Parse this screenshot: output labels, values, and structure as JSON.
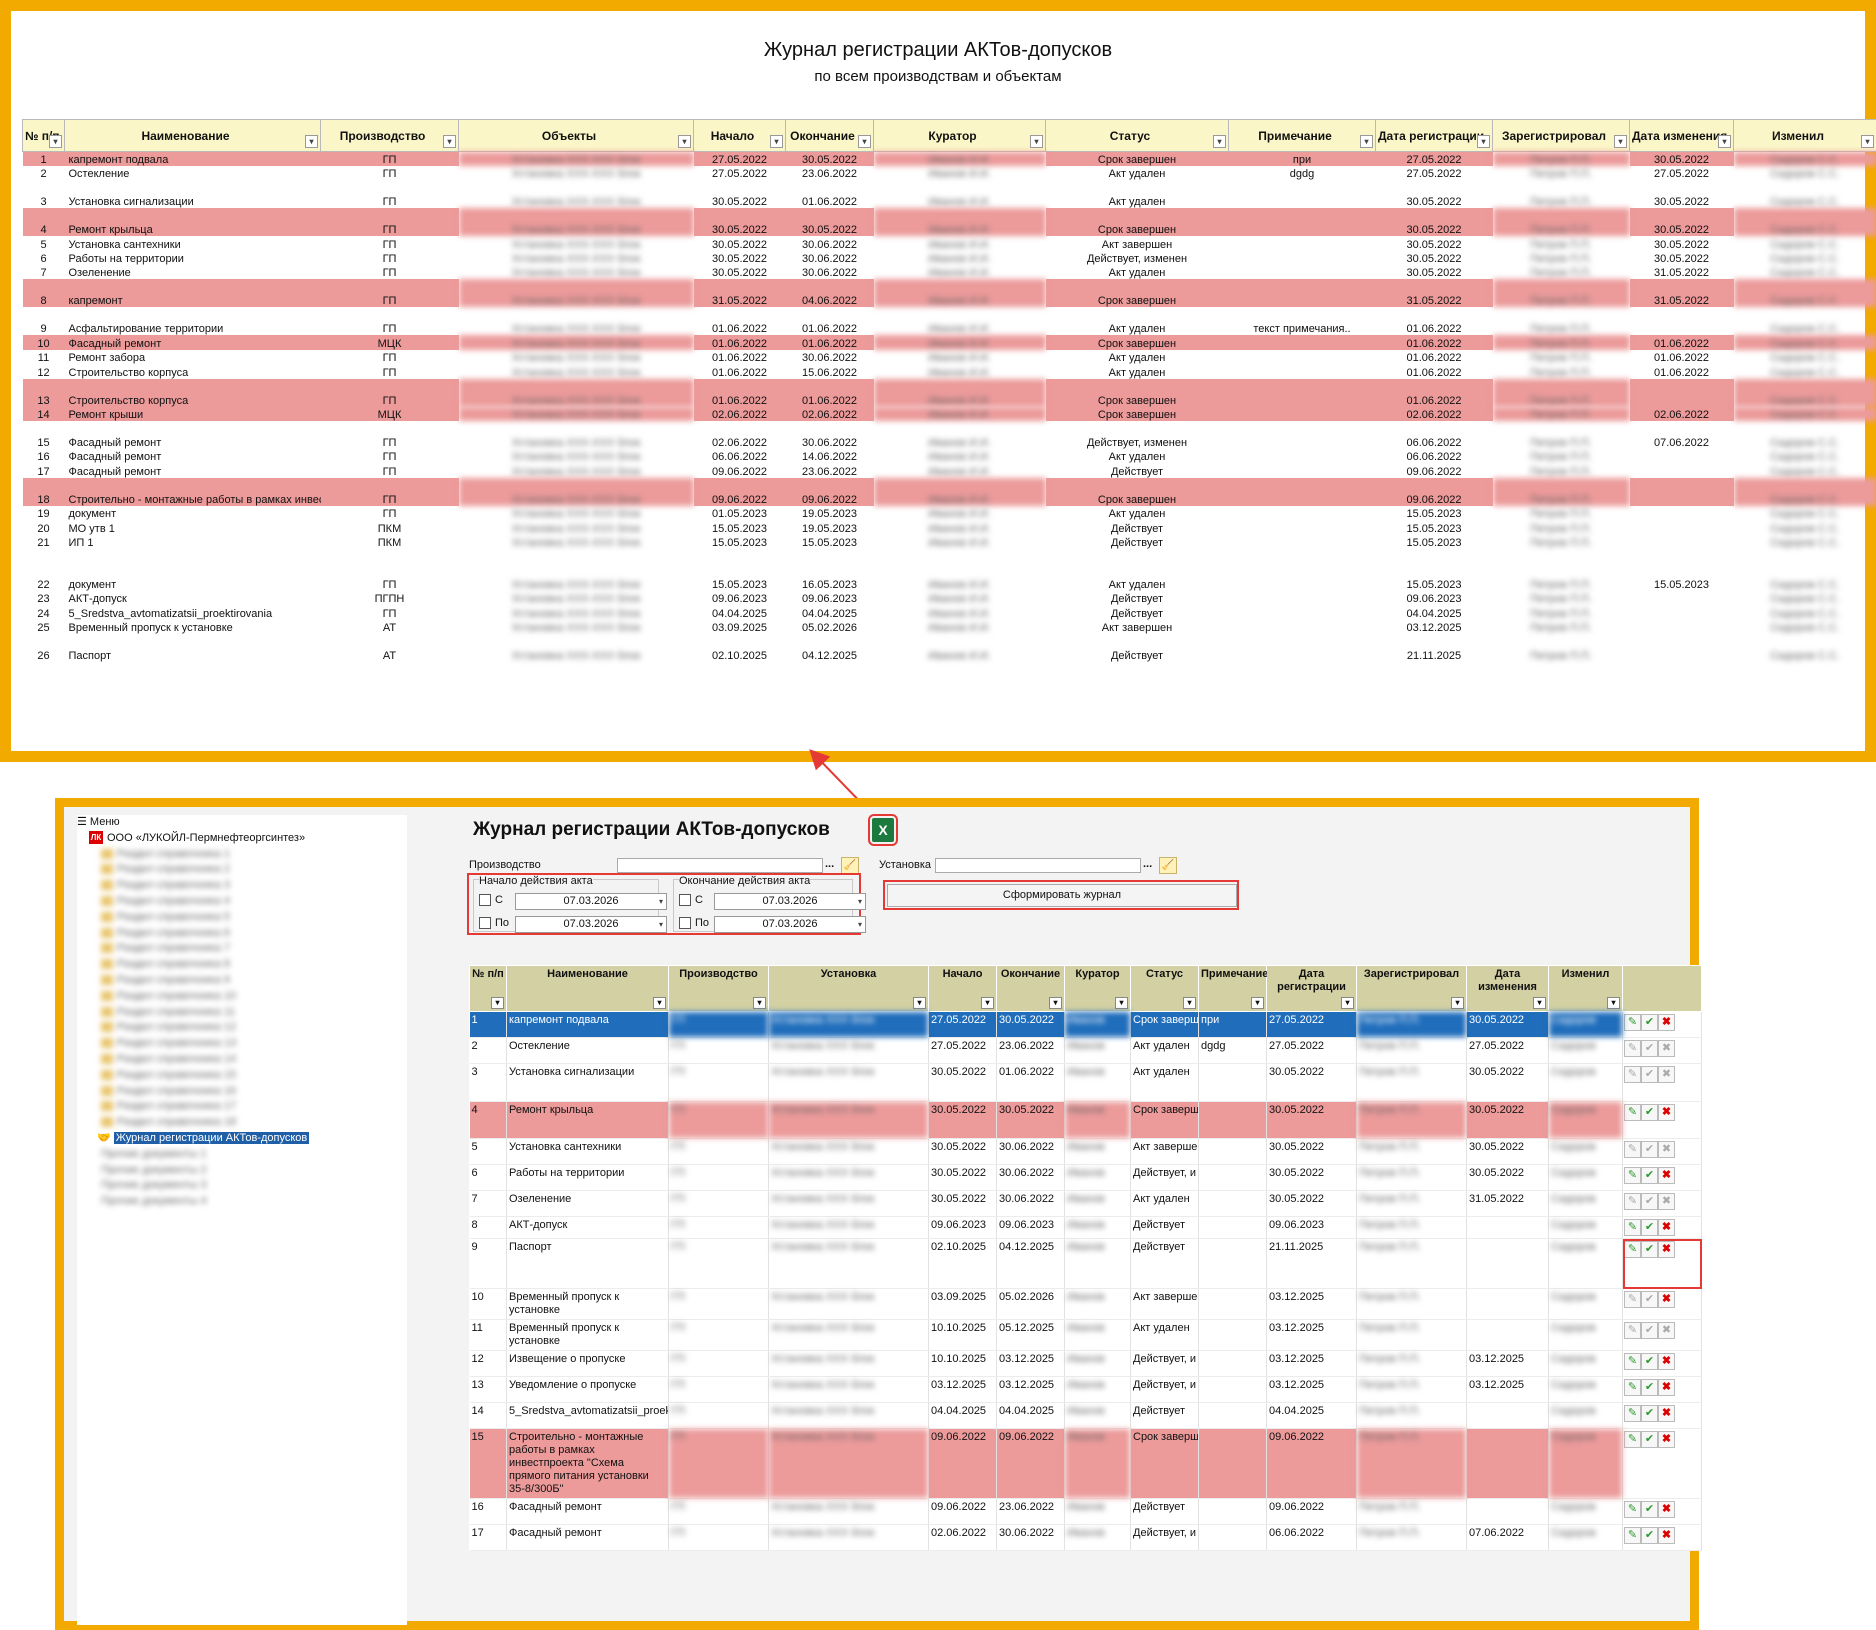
{
  "excel": {
    "title": "Журнал регистрации АКТов-допусков",
    "subtitle": "по всем производствам и объектам",
    "columns": [
      "№ п/п",
      "Наименование",
      "Производство",
      "Объекты",
      "Начало",
      "Окончание",
      "Куратор",
      "Статус",
      "Примечание",
      "Дата регистрации",
      "Зарегистрировал",
      "Дата изменения",
      "Изменил"
    ],
    "rows": [
      {
        "n": "1",
        "name": "капремонт подвала",
        "prod": "ГП",
        "start": "27.05.2022",
        "end": "30.05.2022",
        "status": "Срок завершен",
        "note": "при",
        "reg": "27.05.2022",
        "chg": "30.05.2022",
        "red": true
      },
      {
        "n": "2",
        "name": "Остекление",
        "prod": "ГП",
        "start": "27.05.2022",
        "end": "23.06.2022",
        "status": "Акт удален",
        "note": "dgdg",
        "reg": "27.05.2022",
        "chg": "27.05.2022",
        "red": false
      },
      {
        "n": "3",
        "name": "Установка сигнализации",
        "prod": "ГП",
        "start": "30.05.2022",
        "end": "01.06.2022",
        "status": "Акт удален",
        "note": "",
        "reg": "30.05.2022",
        "chg": "30.05.2022",
        "red": false,
        "tall": true
      },
      {
        "n": "4",
        "name": "Ремонт крыльца",
        "prod": "ГП",
        "start": "30.05.2022",
        "end": "30.05.2022",
        "status": "Срок завершен",
        "note": "",
        "reg": "30.05.2022",
        "chg": "30.05.2022",
        "red": true,
        "tall": true
      },
      {
        "n": "5",
        "name": "Установка сантехники",
        "prod": "ГП",
        "start": "30.05.2022",
        "end": "30.06.2022",
        "status": "Акт завершен",
        "note": "",
        "reg": "30.05.2022",
        "chg": "30.05.2022",
        "red": false
      },
      {
        "n": "6",
        "name": "Работы на территории",
        "prod": "ГП",
        "start": "30.05.2022",
        "end": "30.06.2022",
        "status": "Действует, изменен",
        "note": "",
        "reg": "30.05.2022",
        "chg": "30.05.2022",
        "red": false
      },
      {
        "n": "7",
        "name": "Озеленение",
        "prod": "ГП",
        "start": "30.05.2022",
        "end": "30.06.2022",
        "status": "Акт удален",
        "note": "",
        "reg": "30.05.2022",
        "chg": "31.05.2022",
        "red": false
      },
      {
        "n": "8",
        "name": "капремонт",
        "prod": "ГП",
        "start": "31.05.2022",
        "end": "04.06.2022",
        "status": "Срок завершен",
        "note": "",
        "reg": "31.05.2022",
        "chg": "31.05.2022",
        "red": true,
        "tall": true
      },
      {
        "n": "9",
        "name": "Асфальтирование территории",
        "prod": "ГП",
        "start": "01.06.2022",
        "end": "01.06.2022",
        "status": "Акт удален",
        "note": "текст примечания..",
        "reg": "01.06.2022",
        "chg": "",
        "red": false,
        "tall": true
      },
      {
        "n": "10",
        "name": "Фасадный ремонт",
        "prod": "МЦК",
        "start": "01.06.2022",
        "end": "01.06.2022",
        "status": "Срок завершен",
        "note": "",
        "reg": "01.06.2022",
        "chg": "01.06.2022",
        "red": true
      },
      {
        "n": "11",
        "name": "Ремонт забора",
        "prod": "ГП",
        "start": "01.06.2022",
        "end": "30.06.2022",
        "status": "Акт удален",
        "note": "",
        "reg": "01.06.2022",
        "chg": "01.06.2022",
        "red": false
      },
      {
        "n": "12",
        "name": "Строительство корпуса",
        "prod": "ГП",
        "start": "01.06.2022",
        "end": "15.06.2022",
        "status": "Акт удален",
        "note": "",
        "reg": "01.06.2022",
        "chg": "01.06.2022",
        "red": false
      },
      {
        "n": "13",
        "name": "Строительство корпуса",
        "prod": "ГП",
        "start": "01.06.2022",
        "end": "01.06.2022",
        "status": "Срок завершен",
        "note": "",
        "reg": "01.06.2022",
        "chg": "",
        "red": true,
        "tall": true
      },
      {
        "n": "14",
        "name": "Ремонт крыши",
        "prod": "МЦК",
        "start": "02.06.2022",
        "end": "02.06.2022",
        "status": "Срок завершен",
        "note": "",
        "reg": "02.06.2022",
        "chg": "02.06.2022",
        "red": true
      },
      {
        "n": "15",
        "name": "Фасадный ремонт",
        "prod": "ГП",
        "start": "02.06.2022",
        "end": "30.06.2022",
        "status": "Действует, изменен",
        "note": "",
        "reg": "06.06.2022",
        "chg": "07.06.2022",
        "red": false,
        "tall": true
      },
      {
        "n": "16",
        "name": "Фасадный ремонт",
        "prod": "ГП",
        "start": "06.06.2022",
        "end": "14.06.2022",
        "status": "Акт удален",
        "note": "",
        "reg": "06.06.2022",
        "chg": "",
        "red": false
      },
      {
        "n": "17",
        "name": "Фасадный ремонт",
        "prod": "ГП",
        "start": "09.06.2022",
        "end": "23.06.2022",
        "status": "Действует",
        "note": "",
        "reg": "09.06.2022",
        "chg": "",
        "red": false
      },
      {
        "n": "18",
        "name": "Строительно - монтажные работы в рамках инвестпроекта \"Схема прямого питания",
        "prod": "ГП",
        "start": "09.06.2022",
        "end": "09.06.2022",
        "status": "Срок завершен",
        "note": "",
        "reg": "09.06.2022",
        "chg": "",
        "red": true,
        "tall": true
      },
      {
        "n": "19",
        "name": "документ",
        "prod": "ГП",
        "start": "01.05.2023",
        "end": "19.05.2023",
        "status": "Акт удален",
        "note": "",
        "reg": "15.05.2023",
        "chg": "",
        "red": false
      },
      {
        "n": "20",
        "name": "МО утв 1",
        "prod": "ПКМ",
        "start": "15.05.2023",
        "end": "19.05.2023",
        "status": "Действует",
        "note": "",
        "reg": "15.05.2023",
        "chg": "",
        "red": false
      },
      {
        "n": "21",
        "name": "ИП 1",
        "prod": "ПКМ",
        "start": "15.05.2023",
        "end": "15.05.2023",
        "status": "Действует",
        "note": "",
        "reg": "15.05.2023",
        "chg": "",
        "red": false
      },
      {
        "n": "22",
        "name": "документ",
        "prod": "ГП",
        "start": "15.05.2023",
        "end": "16.05.2023",
        "status": "Акт удален",
        "note": "",
        "reg": "15.05.2023",
        "chg": "15.05.2023",
        "red": false,
        "xtall": true
      },
      {
        "n": "23",
        "name": "АКТ-допуск",
        "prod": "ПГПН",
        "start": "09.06.2023",
        "end": "09.06.2023",
        "status": "Действует",
        "note": "",
        "reg": "09.06.2023",
        "chg": "",
        "red": false
      },
      {
        "n": "24",
        "name": "5_Sredstva_avtomatizatsii_proektirovania",
        "prod": "ГП",
        "start": "04.04.2025",
        "end": "04.04.2025",
        "status": "Действует",
        "note": "",
        "reg": "04.04.2025",
        "chg": "",
        "red": false
      },
      {
        "n": "25",
        "name": "Временный пропуск к установке",
        "prod": "АТ",
        "start": "03.09.2025",
        "end": "05.02.2026",
        "status": "Акт завершен",
        "note": "",
        "reg": "03.12.2025",
        "chg": "",
        "red": false
      },
      {
        "n": "26",
        "name": "Паспорт",
        "prod": "АТ",
        "start": "02.10.2025",
        "end": "04.12.2025",
        "status": "Действует",
        "note": "",
        "reg": "21.11.2025",
        "chg": "",
        "red": false,
        "tall": true
      }
    ]
  },
  "tree": {
    "menu_label": "Меню",
    "company": "ООО «ЛУКОЙЛ-Пермнефтеоргсинтез»",
    "selected_item": "Журнал регистрации АКТов-допусков"
  },
  "app": {
    "title": "Журнал регистрации АКТов-допусков",
    "excel_icon": "X",
    "prod_label": "Производство",
    "unit_label": "Установка",
    "dots": "...",
    "start_group": "Начало действия акта",
    "end_group": "Окончание действия акта",
    "from_label": "С",
    "to_label": "По",
    "date_start_from": "07.03.2026",
    "date_start_to": "07.03.2026",
    "date_end_from": "07.03.2026",
    "date_end_to": "07.03.2026",
    "build_button": "Сформировать журнал",
    "columns": [
      "№ п/п",
      "Наименование",
      "Производство",
      "Установка",
      "Начало",
      "Окончание",
      "Куратор",
      "Статус",
      "Примечание",
      "Дата регистрации",
      "Зарегистрировал",
      "Дата изменения",
      "Изменил"
    ],
    "rows": [
      {
        "n": "1",
        "name": "капремонт подвала",
        "start": "27.05.2022",
        "end": "30.05.2022",
        "status": "Срок заверш",
        "note": "при",
        "reg": "27.05.2022",
        "chg": "30.05.2022",
        "style": "sel",
        "h": 26,
        "icons": "ok"
      },
      {
        "n": "2",
        "name": "Остекление",
        "start": "27.05.2022",
        "end": "23.06.2022",
        "status": "Акт удален",
        "note": "dgdg",
        "reg": "27.05.2022",
        "chg": "27.05.2022",
        "style": "",
        "h": 26,
        "icons": "dim"
      },
      {
        "n": "3",
        "name": "Установка сигнализации",
        "start": "30.05.2022",
        "end": "01.06.2022",
        "status": "Акт удален",
        "note": "",
        "reg": "30.05.2022",
        "chg": "30.05.2022",
        "style": "",
        "h": 38,
        "icons": "dim"
      },
      {
        "n": "4",
        "name": "Ремонт крыльца",
        "start": "30.05.2022",
        "end": "30.05.2022",
        "status": "Срок заверш",
        "note": "",
        "reg": "30.05.2022",
        "chg": "30.05.2022",
        "style": "red",
        "h": 37,
        "icons": "ok"
      },
      {
        "n": "5",
        "name": "Установка сантехники",
        "start": "30.05.2022",
        "end": "30.06.2022",
        "status": "Акт заверше",
        "note": "",
        "reg": "30.05.2022",
        "chg": "30.05.2022",
        "style": "",
        "h": 26,
        "icons": "dim"
      },
      {
        "n": "6",
        "name": "Работы на территории",
        "start": "30.05.2022",
        "end": "30.06.2022",
        "status": "Действует, и",
        "note": "",
        "reg": "30.05.2022",
        "chg": "30.05.2022",
        "style": "",
        "h": 26,
        "icons": "ok"
      },
      {
        "n": "7",
        "name": "Озеленение",
        "start": "30.05.2022",
        "end": "30.06.2022",
        "status": "Акт удален",
        "note": "",
        "reg": "30.05.2022",
        "chg": "31.05.2022",
        "style": "",
        "h": 26,
        "icons": "dim"
      },
      {
        "n": "8",
        "name": "АКТ-допуск",
        "start": "09.06.2023",
        "end": "09.06.2023",
        "status": "Действует",
        "note": "",
        "reg": "09.06.2023",
        "chg": "",
        "style": "",
        "h": 20,
        "icons": "ok"
      },
      {
        "n": "9",
        "name": "Паспорт",
        "start": "02.10.2025",
        "end": "04.12.2025",
        "status": "Действует",
        "note": "",
        "reg": "21.11.2025",
        "chg": "",
        "style": "",
        "h": 50,
        "icons": "ok",
        "box": true
      },
      {
        "n": "10",
        "name": "Временный пропуск к установке",
        "start": "03.09.2025",
        "end": "05.02.2026",
        "status": "Акт заверше",
        "note": "",
        "reg": "03.12.2025",
        "chg": "",
        "style": "",
        "h": 26,
        "icons": "dimx"
      },
      {
        "n": "11",
        "name": "Временный пропуск к установке",
        "start": "10.10.2025",
        "end": "05.12.2025",
        "status": "Акт удален",
        "note": "",
        "reg": "03.12.2025",
        "chg": "",
        "style": "",
        "h": 26,
        "icons": "dim"
      },
      {
        "n": "12",
        "name": "Извещение о пропуске",
        "start": "10.10.2025",
        "end": "03.12.2025",
        "status": "Действует, и",
        "note": "",
        "reg": "03.12.2025",
        "chg": "03.12.2025",
        "style": "",
        "h": 26,
        "icons": "ok"
      },
      {
        "n": "13",
        "name": "Уведомление о пропуске",
        "start": "03.12.2025",
        "end": "03.12.2025",
        "status": "Действует, и",
        "note": "",
        "reg": "03.12.2025",
        "chg": "03.12.2025",
        "style": "",
        "h": 26,
        "icons": "ok"
      },
      {
        "n": "14",
        "name": "5_Sredstva_avtomatizatsii_proek",
        "start": "04.04.2025",
        "end": "04.04.2025",
        "status": "Действует",
        "note": "",
        "reg": "04.04.2025",
        "chg": "",
        "style": "",
        "h": 26,
        "icons": "ok"
      },
      {
        "n": "15",
        "name": "Строительно - монтажные работы в рамках инвестпроекта \"Схема прямого питания установки 35-8/300Б\"",
        "start": "09.06.2022",
        "end": "09.06.2022",
        "status": "Срок заверш",
        "note": "",
        "reg": "09.06.2022",
        "chg": "",
        "style": "red",
        "h": 61,
        "icons": "ok"
      },
      {
        "n": "16",
        "name": "Фасадный ремонт",
        "start": "09.06.2022",
        "end": "23.06.2022",
        "status": "Действует",
        "note": "",
        "reg": "09.06.2022",
        "chg": "",
        "style": "",
        "h": 26,
        "icons": "ok"
      },
      {
        "n": "17",
        "name": "Фасадный ремонт",
        "start": "02.06.2022",
        "end": "30.06.2022",
        "status": "Действует, и",
        "note": "",
        "reg": "06.06.2022",
        "chg": "07.06.2022",
        "style": "",
        "h": 26,
        "icons": "ok"
      }
    ]
  },
  "colors": {
    "accent_frame": "#f2a900",
    "arrow": "#e53935",
    "row_red": "#ec9a9a",
    "row_selected": "#1f6dbb",
    "header_excel": "#fbf6c8",
    "header_grid": "#d3d0a3"
  }
}
